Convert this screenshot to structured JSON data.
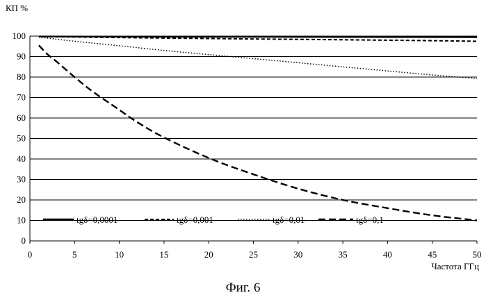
{
  "chart_data": {
    "type": "line",
    "ylabel": "КП %",
    "xlabel": "Частота ГГц",
    "caption": "Фиг. 6",
    "xlim": [
      0,
      50
    ],
    "ylim": [
      0,
      100
    ],
    "xticks": [
      0,
      5,
      10,
      15,
      20,
      25,
      30,
      35,
      40,
      45,
      50
    ],
    "yticks": [
      0,
      10,
      20,
      30,
      40,
      50,
      60,
      70,
      80,
      90,
      100
    ],
    "grid": "horizontal",
    "legend_position": "bottom, inside plot",
    "series": [
      {
        "name": "tgδ=0,0001",
        "style": "solid",
        "x": [
          1,
          50
        ],
        "y": [
          99.8,
          99.5
        ]
      },
      {
        "name": "tgδ=0,001",
        "style": "dashed",
        "x": [
          1,
          10,
          20,
          30,
          40,
          50
        ],
        "y": [
          99.8,
          99.3,
          98.8,
          98.4,
          98.0,
          97.5
        ]
      },
      {
        "name": "tgδ=0,01",
        "style": "dotted",
        "x": [
          1,
          5,
          10,
          15,
          20,
          25,
          30,
          35,
          40,
          45,
          50
        ],
        "y": [
          99.5,
          97.5,
          95.3,
          93.0,
          91.0,
          89.0,
          87.0,
          85.0,
          83.0,
          81.0,
          79.3
        ]
      },
      {
        "name": "tgδ=0,1",
        "style": "long-dashed",
        "x": [
          1,
          2,
          3,
          5,
          7,
          10,
          12,
          15,
          20,
          25,
          30,
          35,
          40,
          45,
          50
        ],
        "y": [
          95.5,
          91.0,
          87.5,
          80.0,
          73.0,
          64.0,
          58.0,
          50.5,
          40.5,
          32.5,
          25.5,
          20.0,
          16.0,
          12.5,
          10.0
        ]
      }
    ]
  }
}
